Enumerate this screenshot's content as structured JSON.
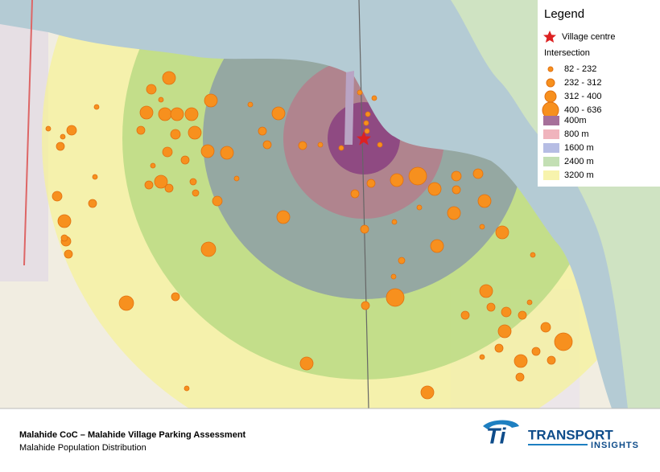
{
  "legend": {
    "title": "Legend",
    "village": "Village centre",
    "intersection_title": "Intersection",
    "sizes": [
      "82 - 232",
      "232 - 312",
      "312 - 400",
      "400 - 636"
    ],
    "buffers": [
      "400m",
      "800 m",
      "1600 m",
      "2400 m",
      "3200 m"
    ]
  },
  "footer": {
    "title": "Malahide CoC – Malahide Village Parking Assessment",
    "subtitle": "Malahide Population Distribution"
  },
  "logo": {
    "name": "TRANSPORT",
    "tagline": "INSIGHTS"
  }
}
